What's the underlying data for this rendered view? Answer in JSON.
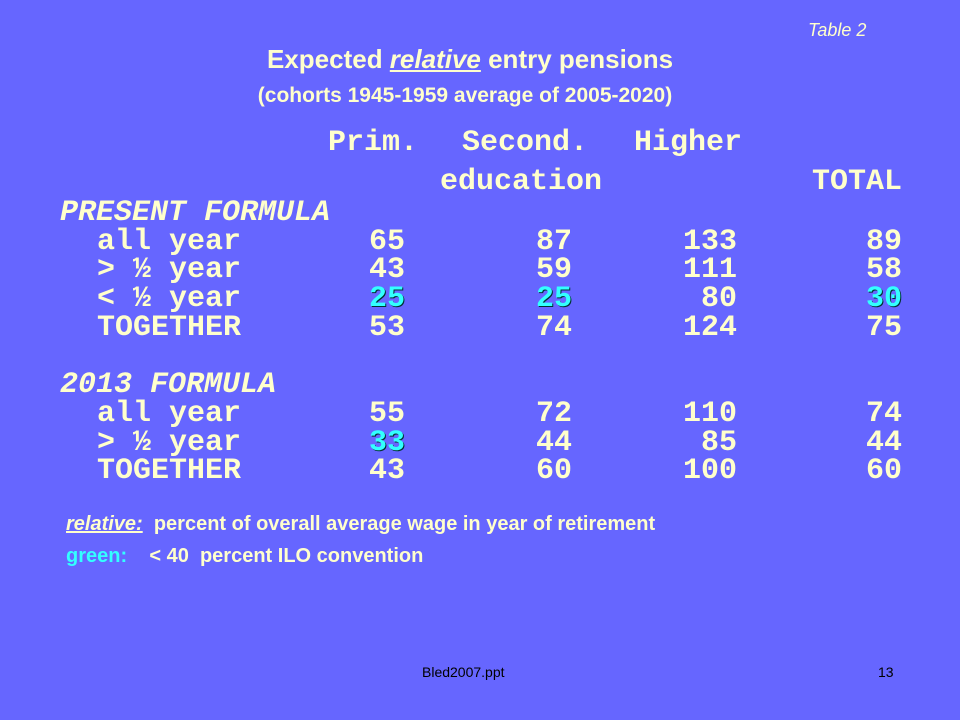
{
  "table_label": "Table 2",
  "title": {
    "before": "Expected ",
    "emphasis": "relative",
    "after": " entry pensions"
  },
  "subtitle": "(cohorts 1945-1959 average of 2005-2020)",
  "header": {
    "row1": [
      "Prim.",
      "Second.",
      "Higher"
    ],
    "row2": [
      "education",
      "TOTAL"
    ]
  },
  "highlight_color": "#33ffff",
  "sections": [
    {
      "label": "PRESENT FORMULA",
      "rows": [
        {
          "label": "all year",
          "values": [
            65,
            87,
            133,
            89
          ],
          "green": [
            false,
            false,
            false,
            false
          ]
        },
        {
          "label": "> ½ year",
          "values": [
            43,
            59,
            111,
            58
          ],
          "green": [
            false,
            false,
            false,
            false
          ]
        },
        {
          "label": "< ½ year",
          "values": [
            25,
            25,
            80,
            30
          ],
          "green": [
            true,
            true,
            false,
            true
          ]
        },
        {
          "label": "TOGETHER",
          "values": [
            53,
            74,
            124,
            75
          ],
          "green": [
            false,
            false,
            false,
            false
          ]
        }
      ]
    },
    {
      "label": "2013 FORMULA",
      "rows": [
        {
          "label": "all year",
          "values": [
            55,
            72,
            110,
            74
          ],
          "green": [
            false,
            false,
            false,
            false
          ]
        },
        {
          "label": "> ½ year",
          "values": [
            33,
            44,
            85,
            44
          ],
          "green": [
            true,
            false,
            false,
            false
          ]
        },
        {
          "label": "TOGETHER",
          "values": [
            43,
            60,
            100,
            60
          ],
          "green": [
            false,
            false,
            false,
            false
          ]
        }
      ]
    }
  ],
  "notes": [
    {
      "key": "relative:",
      "text": "percent of overall average wage in year of retirement"
    },
    {
      "key": "green:",
      "text": "< 40  percent ILO convention"
    }
  ],
  "footer": {
    "file": "Bled2007.ppt",
    "page": "13"
  }
}
